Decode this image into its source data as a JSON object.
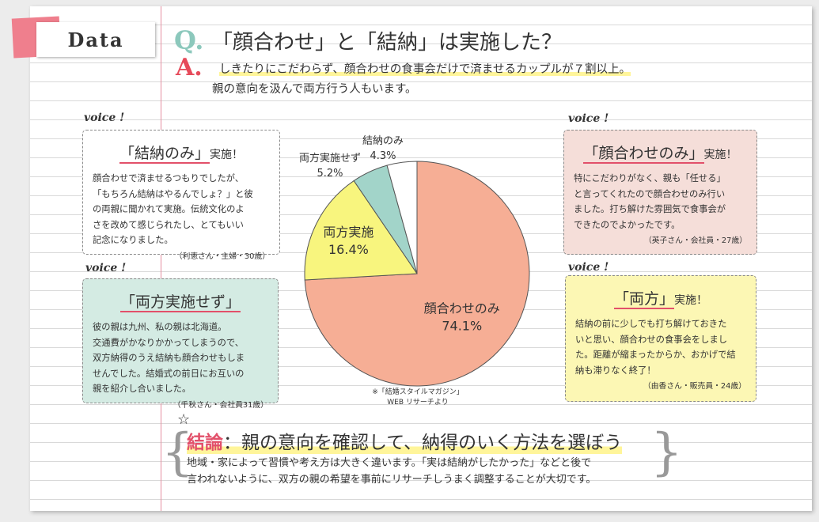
{
  "tab": {
    "label": "Data"
  },
  "question": {
    "mark": "Q.",
    "text": "「顔合わせ」と「結納」は実施した？"
  },
  "answer": {
    "mark": "A.",
    "line1_highlight": "しきたりにこだわらず、顔合わせの食事会だけで済ませるカップルが７割以上。",
    "line2": "親の意向を汲んで両方行う人もいます。"
  },
  "voice_label": "voice !",
  "cards": [
    {
      "title": "「結納のみ」",
      "title_small": "実施！",
      "body": [
        "顔合わせで済ませるつもりでしたが、",
        "「もちろん結納はやるんでしょ？」と彼",
        "の両親に聞かれて実施。伝統文化のよ",
        "さを改めて感じられたし、とてもいい",
        "記念になりました。"
      ],
      "cite": "（利恵さん・主婦・30歳）"
    },
    {
      "title": "「両方実施せず」",
      "title_small": "",
      "body": [
        "彼の親は九州、私の親は北海道。",
        "交通費がかなりかかってしまうので、",
        "双方納得のうえ結納も顔合わせもしま",
        "せんでした。結婚式の前日にお互いの",
        "親を紹介し合いました。"
      ],
      "cite": "（千秋さん・会社員31歳）"
    },
    {
      "title": "「顔合わせのみ」",
      "title_small": "実施！",
      "body": [
        "特にこだわりがなく、親も「任せる」",
        "と言ってくれたので顔合わせのみ行い",
        "ました。打ち解けた雰囲気で食事会が",
        "できたのでよかったです。"
      ],
      "cite": "（英子さん・会社員・27歳）"
    },
    {
      "title": "「両方」",
      "title_small": "実施！",
      "body": [
        "結納の前に少しでも打ち解けておきた",
        "いと思い、顔合わせの食事会をしまし",
        "た。距離が縮まったからか、おかげで結",
        "納も滞りなく終了！"
      ],
      "cite": "（由香さん・販売員・24歳）"
    }
  ],
  "chart_data": {
    "type": "pie",
    "title": "",
    "categories": [
      "顔合わせのみ",
      "両方実施",
      "両方実施せず",
      "結納のみ"
    ],
    "values": [
      74.1,
      16.4,
      5.2,
      4.3
    ],
    "value_labels": [
      "74.1%",
      "16.4%",
      "5.2%",
      "4.3%"
    ],
    "colors": [
      "#f6ae95",
      "#f8f57e",
      "#a2d4c9",
      "#ffffff"
    ],
    "source": [
      "※「結婚スタイルマガジン」",
      "WEB リサーチより"
    ]
  },
  "conclusion": {
    "title_em": "結論",
    "title": "：親の意向を確認して、納得のいく方法を選ぼう",
    "body": [
      "地域・家によって習慣や考え方は大きく違います。「実は結納がしたかった」などと後で",
      "言われないように、双方の親の希望を事前にリサーチしうまく調整することが大切です。"
    ]
  }
}
